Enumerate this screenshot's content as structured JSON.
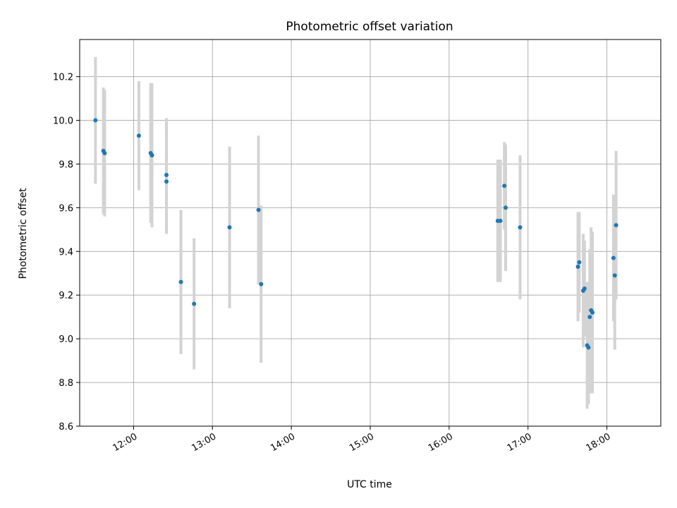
{
  "chart_data": {
    "type": "scatter",
    "title": "Photometric offset variation",
    "xlabel": "UTC time",
    "ylabel": "Photometric offset",
    "x_ticks": [
      "12:00",
      "13:00",
      "14:00",
      "15:00",
      "16:00",
      "17:00",
      "18:00"
    ],
    "y_ticks": [
      "8.6",
      "8.8",
      "9.0",
      "9.2",
      "9.4",
      "9.6",
      "9.8",
      "10.0",
      "10.2"
    ],
    "xlim": [
      "11:19",
      "18:41"
    ],
    "ylim": [
      8.6,
      10.37
    ],
    "grid": true,
    "series": [
      {
        "marker_color": "#1f77b4",
        "errorbar_color": "#d3d3d3",
        "points": [
          {
            "x": "11:31",
            "y": 10.0,
            "yerr": 0.29
          },
          {
            "x": "11:37",
            "y": 9.86,
            "yerr": 0.29
          },
          {
            "x": "11:38",
            "y": 9.85,
            "yerr": 0.29
          },
          {
            "x": "12:04",
            "y": 9.93,
            "yerr": 0.25
          },
          {
            "x": "12:13",
            "y": 9.85,
            "yerr": 0.32
          },
          {
            "x": "12:14",
            "y": 9.84,
            "yerr": 0.33
          },
          {
            "x": "12:25",
            "y": 9.75,
            "yerr": 0.26
          },
          {
            "x": "12:25",
            "y": 9.72,
            "yerr": 0.24
          },
          {
            "x": "12:36",
            "y": 9.26,
            "yerr": 0.33
          },
          {
            "x": "12:46",
            "y": 9.16,
            "yerr": 0.3
          },
          {
            "x": "13:13",
            "y": 9.51,
            "yerr": 0.37
          },
          {
            "x": "13:35",
            "y": 9.59,
            "yerr": 0.34
          },
          {
            "x": "13:37",
            "y": 9.25,
            "yerr": 0.36
          },
          {
            "x": "16:37",
            "y": 9.54,
            "yerr": 0.28
          },
          {
            "x": "16:39",
            "y": 9.54,
            "yerr": 0.28
          },
          {
            "x": "16:42",
            "y": 9.7,
            "yerr": 0.2
          },
          {
            "x": "16:43",
            "y": 9.6,
            "yerr": 0.29
          },
          {
            "x": "16:54",
            "y": 9.51,
            "yerr": 0.33
          },
          {
            "x": "17:38",
            "y": 9.33,
            "yerr": 0.25
          },
          {
            "x": "17:39",
            "y": 9.35,
            "yerr": 0.23
          },
          {
            "x": "17:42",
            "y": 9.22,
            "yerr": 0.26
          },
          {
            "x": "17:43",
            "y": 9.23,
            "yerr": 0.22
          },
          {
            "x": "17:45",
            "y": 8.97,
            "yerr": 0.29
          },
          {
            "x": "17:46",
            "y": 8.96,
            "yerr": 0.26
          },
          {
            "x": "17:47",
            "y": 9.1,
            "yerr": 0.31
          },
          {
            "x": "17:48",
            "y": 9.13,
            "yerr": 0.38
          },
          {
            "x": "17:49",
            "y": 9.12,
            "yerr": 0.37
          },
          {
            "x": "18:05",
            "y": 9.37,
            "yerr": 0.29
          },
          {
            "x": "18:06",
            "y": 9.29,
            "yerr": 0.34
          },
          {
            "x": "18:07",
            "y": 9.52,
            "yerr": 0.34
          }
        ]
      }
    ]
  }
}
